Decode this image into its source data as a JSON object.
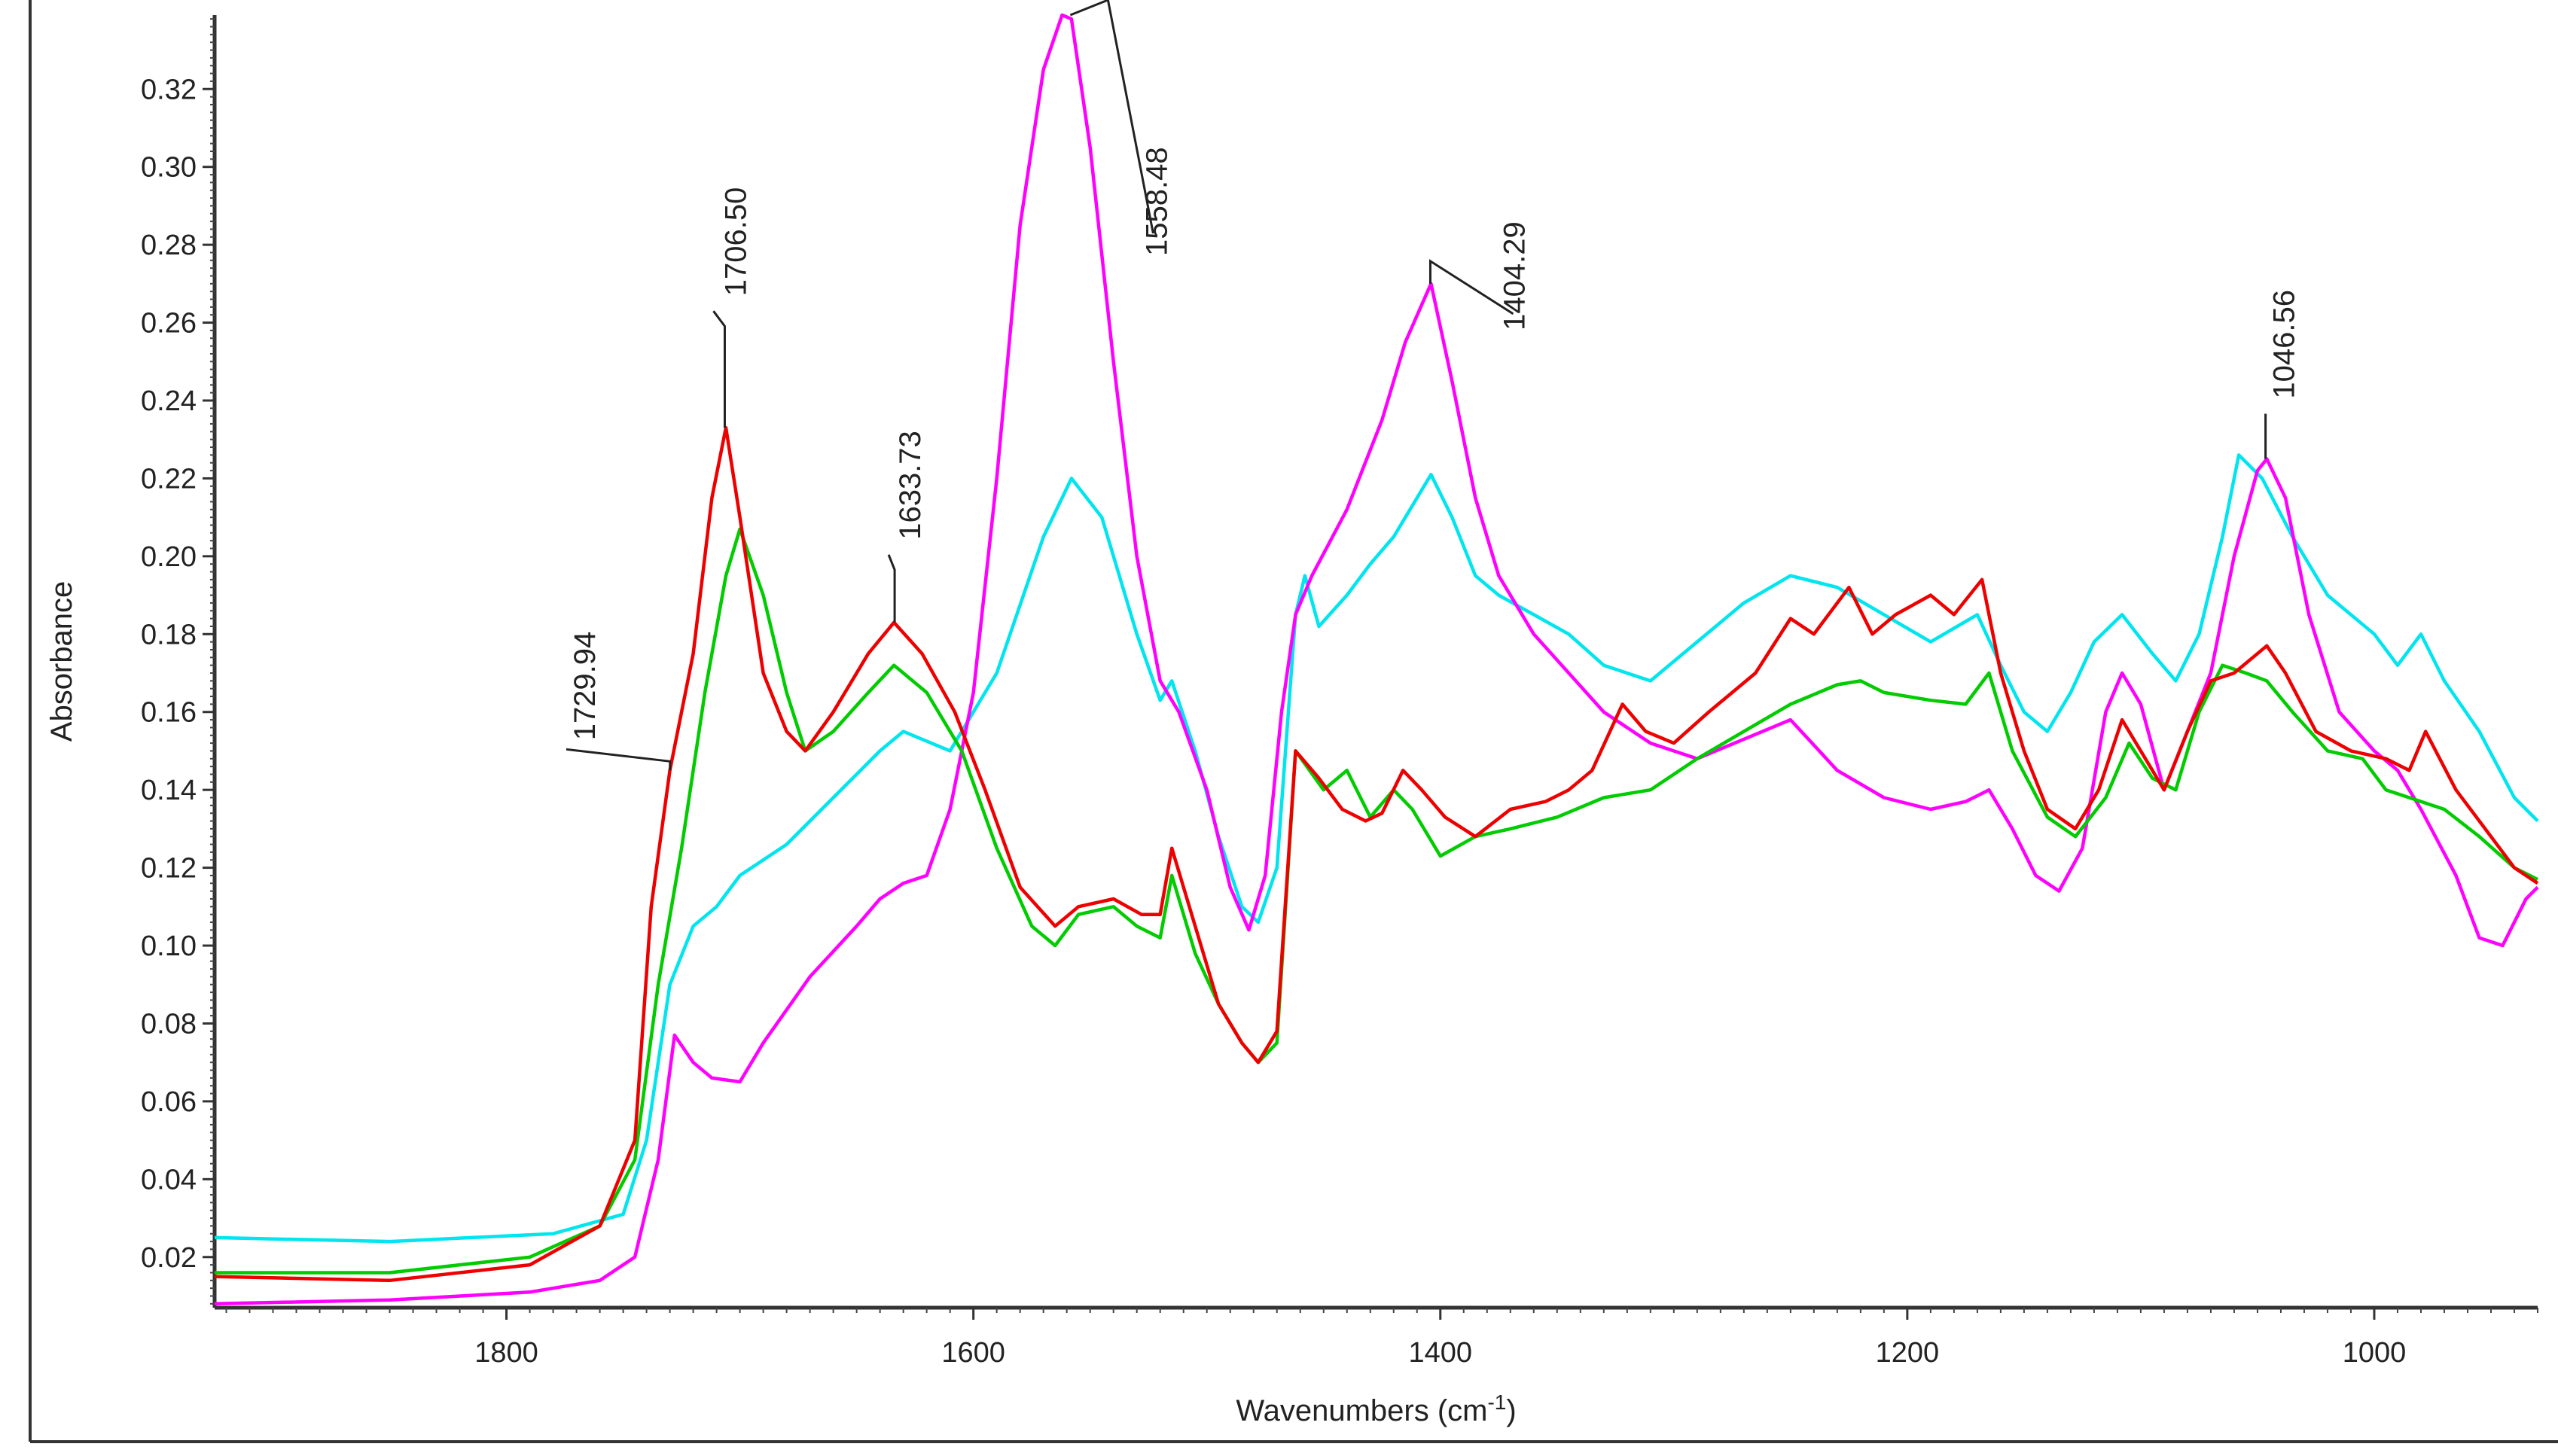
{
  "chart_data": {
    "type": "line",
    "title": "",
    "xlabel": "Wavenumbers (cm-1)",
    "ylabel": "Absorbance",
    "x_reversed": true,
    "xlim": [
      1925,
      930
    ],
    "ylim": [
      0.007,
      0.339
    ],
    "x_ticks": [
      1800,
      1600,
      1400,
      1200,
      1000
    ],
    "x_tick_labels": [
      "1800",
      "1600",
      "1400",
      "1200",
      "1000"
    ],
    "y_ticks": [
      0.02,
      0.04,
      0.06,
      0.08,
      0.1,
      0.12,
      0.14,
      0.16,
      0.18,
      0.2,
      0.22,
      0.24,
      0.26,
      0.28,
      0.3,
      0.32
    ],
    "y_tick_labels": [
      "0.02",
      "0.04",
      "0.06",
      "0.08",
      "0.10",
      "0.12",
      "0.14",
      "0.16",
      "0.18",
      "0.20",
      "0.22",
      "0.24",
      "0.26",
      "0.28",
      "0.30",
      "0.32"
    ],
    "grid": false,
    "legend": "none",
    "series": [
      {
        "color": "#00e5ee",
        "x": [
          1925,
          1850,
          1780,
          1750,
          1740,
          1730,
          1720,
          1710,
          1700,
          1680,
          1660,
          1640,
          1630,
          1610,
          1590,
          1570,
          1558,
          1545,
          1530,
          1520,
          1515,
          1505,
          1495,
          1485,
          1478,
          1470,
          1462,
          1458,
          1452,
          1440,
          1430,
          1420,
          1410,
          1404,
          1395,
          1385,
          1375,
          1360,
          1345,
          1330,
          1310,
          1290,
          1270,
          1250,
          1230,
          1210,
          1190,
          1170,
          1160,
          1150,
          1140,
          1130,
          1120,
          1108,
          1095,
          1085,
          1075,
          1065,
          1058,
          1048,
          1035,
          1020,
          1000,
          990,
          980,
          970,
          955,
          940,
          930
        ],
        "y": [
          0.025,
          0.024,
          0.026,
          0.031,
          0.05,
          0.09,
          0.105,
          0.11,
          0.118,
          0.126,
          0.138,
          0.15,
          0.155,
          0.15,
          0.17,
          0.205,
          0.22,
          0.21,
          0.18,
          0.163,
          0.168,
          0.15,
          0.128,
          0.11,
          0.106,
          0.12,
          0.185,
          0.195,
          0.182,
          0.19,
          0.198,
          0.205,
          0.215,
          0.221,
          0.21,
          0.195,
          0.19,
          0.185,
          0.18,
          0.172,
          0.168,
          0.178,
          0.188,
          0.195,
          0.192,
          0.185,
          0.178,
          0.185,
          0.172,
          0.16,
          0.155,
          0.165,
          0.178,
          0.185,
          0.175,
          0.168,
          0.18,
          0.205,
          0.226,
          0.22,
          0.205,
          0.19,
          0.18,
          0.172,
          0.18,
          0.168,
          0.155,
          0.138,
          0.132
        ]
      },
      {
        "color": "#ff00ff",
        "x": [
          1925,
          1850,
          1790,
          1760,
          1745,
          1735,
          1728,
          1720,
          1712,
          1700,
          1690,
          1670,
          1650,
          1640,
          1630,
          1620,
          1610,
          1600,
          1590,
          1580,
          1570,
          1562,
          1558,
          1550,
          1540,
          1530,
          1520,
          1512,
          1500,
          1490,
          1482,
          1475,
          1468,
          1462,
          1455,
          1440,
          1425,
          1415,
          1404,
          1395,
          1385,
          1375,
          1360,
          1345,
          1330,
          1310,
          1290,
          1270,
          1250,
          1230,
          1210,
          1190,
          1175,
          1165,
          1155,
          1145,
          1135,
          1125,
          1115,
          1108,
          1100,
          1090,
          1080,
          1070,
          1060,
          1050,
          1046,
          1038,
          1028,
          1015,
          1000,
          990,
          980,
          965,
          955,
          945,
          935,
          930
        ],
        "y": [
          0.008,
          0.009,
          0.011,
          0.014,
          0.02,
          0.045,
          0.077,
          0.07,
          0.066,
          0.065,
          0.075,
          0.092,
          0.105,
          0.112,
          0.116,
          0.118,
          0.135,
          0.165,
          0.22,
          0.285,
          0.325,
          0.339,
          0.338,
          0.305,
          0.25,
          0.2,
          0.168,
          0.16,
          0.14,
          0.115,
          0.104,
          0.118,
          0.16,
          0.185,
          0.195,
          0.212,
          0.235,
          0.255,
          0.27,
          0.245,
          0.215,
          0.195,
          0.18,
          0.17,
          0.16,
          0.152,
          0.148,
          0.153,
          0.158,
          0.145,
          0.138,
          0.135,
          0.137,
          0.14,
          0.13,
          0.118,
          0.114,
          0.125,
          0.16,
          0.17,
          0.162,
          0.14,
          0.155,
          0.17,
          0.2,
          0.222,
          0.225,
          0.215,
          0.185,
          0.16,
          0.15,
          0.145,
          0.135,
          0.118,
          0.102,
          0.1,
          0.112,
          0.115
        ]
      },
      {
        "color": "#00cc00",
        "x": [
          1925,
          1850,
          1790,
          1760,
          1745,
          1735,
          1725,
          1715,
          1706,
          1700,
          1690,
          1680,
          1672,
          1660,
          1645,
          1634,
          1620,
          1605,
          1590,
          1575,
          1565,
          1555,
          1540,
          1530,
          1520,
          1515,
          1505,
          1495,
          1485,
          1478,
          1470,
          1462,
          1450,
          1440,
          1430,
          1420,
          1412,
          1400,
          1385,
          1370,
          1350,
          1330,
          1310,
          1290,
          1270,
          1250,
          1230,
          1220,
          1210,
          1190,
          1175,
          1165,
          1155,
          1140,
          1128,
          1115,
          1105,
          1095,
          1085,
          1075,
          1065,
          1055,
          1046,
          1035,
          1020,
          1005,
          995,
          985,
          970,
          955,
          940,
          930
        ],
        "y": [
          0.016,
          0.016,
          0.02,
          0.028,
          0.045,
          0.09,
          0.125,
          0.165,
          0.195,
          0.207,
          0.19,
          0.165,
          0.15,
          0.155,
          0.165,
          0.172,
          0.165,
          0.15,
          0.125,
          0.105,
          0.1,
          0.108,
          0.11,
          0.105,
          0.102,
          0.118,
          0.098,
          0.085,
          0.075,
          0.07,
          0.075,
          0.15,
          0.14,
          0.145,
          0.133,
          0.14,
          0.135,
          0.123,
          0.128,
          0.13,
          0.133,
          0.138,
          0.14,
          0.148,
          0.155,
          0.162,
          0.167,
          0.168,
          0.165,
          0.163,
          0.162,
          0.17,
          0.15,
          0.133,
          0.128,
          0.138,
          0.152,
          0.143,
          0.14,
          0.16,
          0.172,
          0.17,
          0.168,
          0.16,
          0.15,
          0.148,
          0.14,
          0.138,
          0.135,
          0.128,
          0.12,
          0.117
        ]
      },
      {
        "color": "#ee0000",
        "x": [
          1925,
          1850,
          1790,
          1760,
          1745,
          1738,
          1730,
          1720,
          1712,
          1706,
          1700,
          1690,
          1680,
          1672,
          1660,
          1645,
          1634,
          1622,
          1608,
          1595,
          1580,
          1565,
          1555,
          1540,
          1528,
          1520,
          1515,
          1505,
          1495,
          1485,
          1478,
          1470,
          1462,
          1452,
          1442,
          1432,
          1425,
          1416,
          1408,
          1398,
          1385,
          1370,
          1355,
          1345,
          1335,
          1322,
          1312,
          1300,
          1285,
          1265,
          1250,
          1240,
          1225,
          1215,
          1205,
          1190,
          1180,
          1168,
          1160,
          1150,
          1140,
          1128,
          1118,
          1108,
          1098,
          1090,
          1080,
          1070,
          1060,
          1050,
          1046,
          1038,
          1025,
          1010,
          995,
          985,
          978,
          965,
          950,
          940,
          930
        ],
        "y": [
          0.015,
          0.014,
          0.018,
          0.028,
          0.05,
          0.11,
          0.145,
          0.175,
          0.215,
          0.233,
          0.21,
          0.17,
          0.155,
          0.15,
          0.16,
          0.175,
          0.183,
          0.175,
          0.16,
          0.14,
          0.115,
          0.105,
          0.11,
          0.112,
          0.108,
          0.108,
          0.125,
          0.105,
          0.085,
          0.075,
          0.07,
          0.078,
          0.15,
          0.143,
          0.135,
          0.132,
          0.134,
          0.145,
          0.14,
          0.133,
          0.128,
          0.135,
          0.137,
          0.14,
          0.145,
          0.162,
          0.155,
          0.152,
          0.16,
          0.17,
          0.184,
          0.18,
          0.192,
          0.18,
          0.185,
          0.19,
          0.185,
          0.194,
          0.17,
          0.15,
          0.135,
          0.13,
          0.14,
          0.158,
          0.148,
          0.14,
          0.155,
          0.168,
          0.17,
          0.175,
          0.177,
          0.17,
          0.155,
          0.15,
          0.148,
          0.145,
          0.155,
          0.14,
          0.128,
          0.12,
          0.116
        ]
      }
    ],
    "annotations": [
      {
        "text": "1729.94",
        "x": 1729.94,
        "y": 0.145
      },
      {
        "text": "1706.50",
        "x": 1706.5,
        "y": 0.233
      },
      {
        "text": "1633.73",
        "x": 1633.73,
        "y": 0.183
      },
      {
        "text": "1558.48",
        "x": 1558.48,
        "y": 0.339
      },
      {
        "text": "1404.29",
        "x": 1404.29,
        "y": 0.27
      },
      {
        "text": "1046.56",
        "x": 1046.56,
        "y": 0.225
      }
    ]
  }
}
